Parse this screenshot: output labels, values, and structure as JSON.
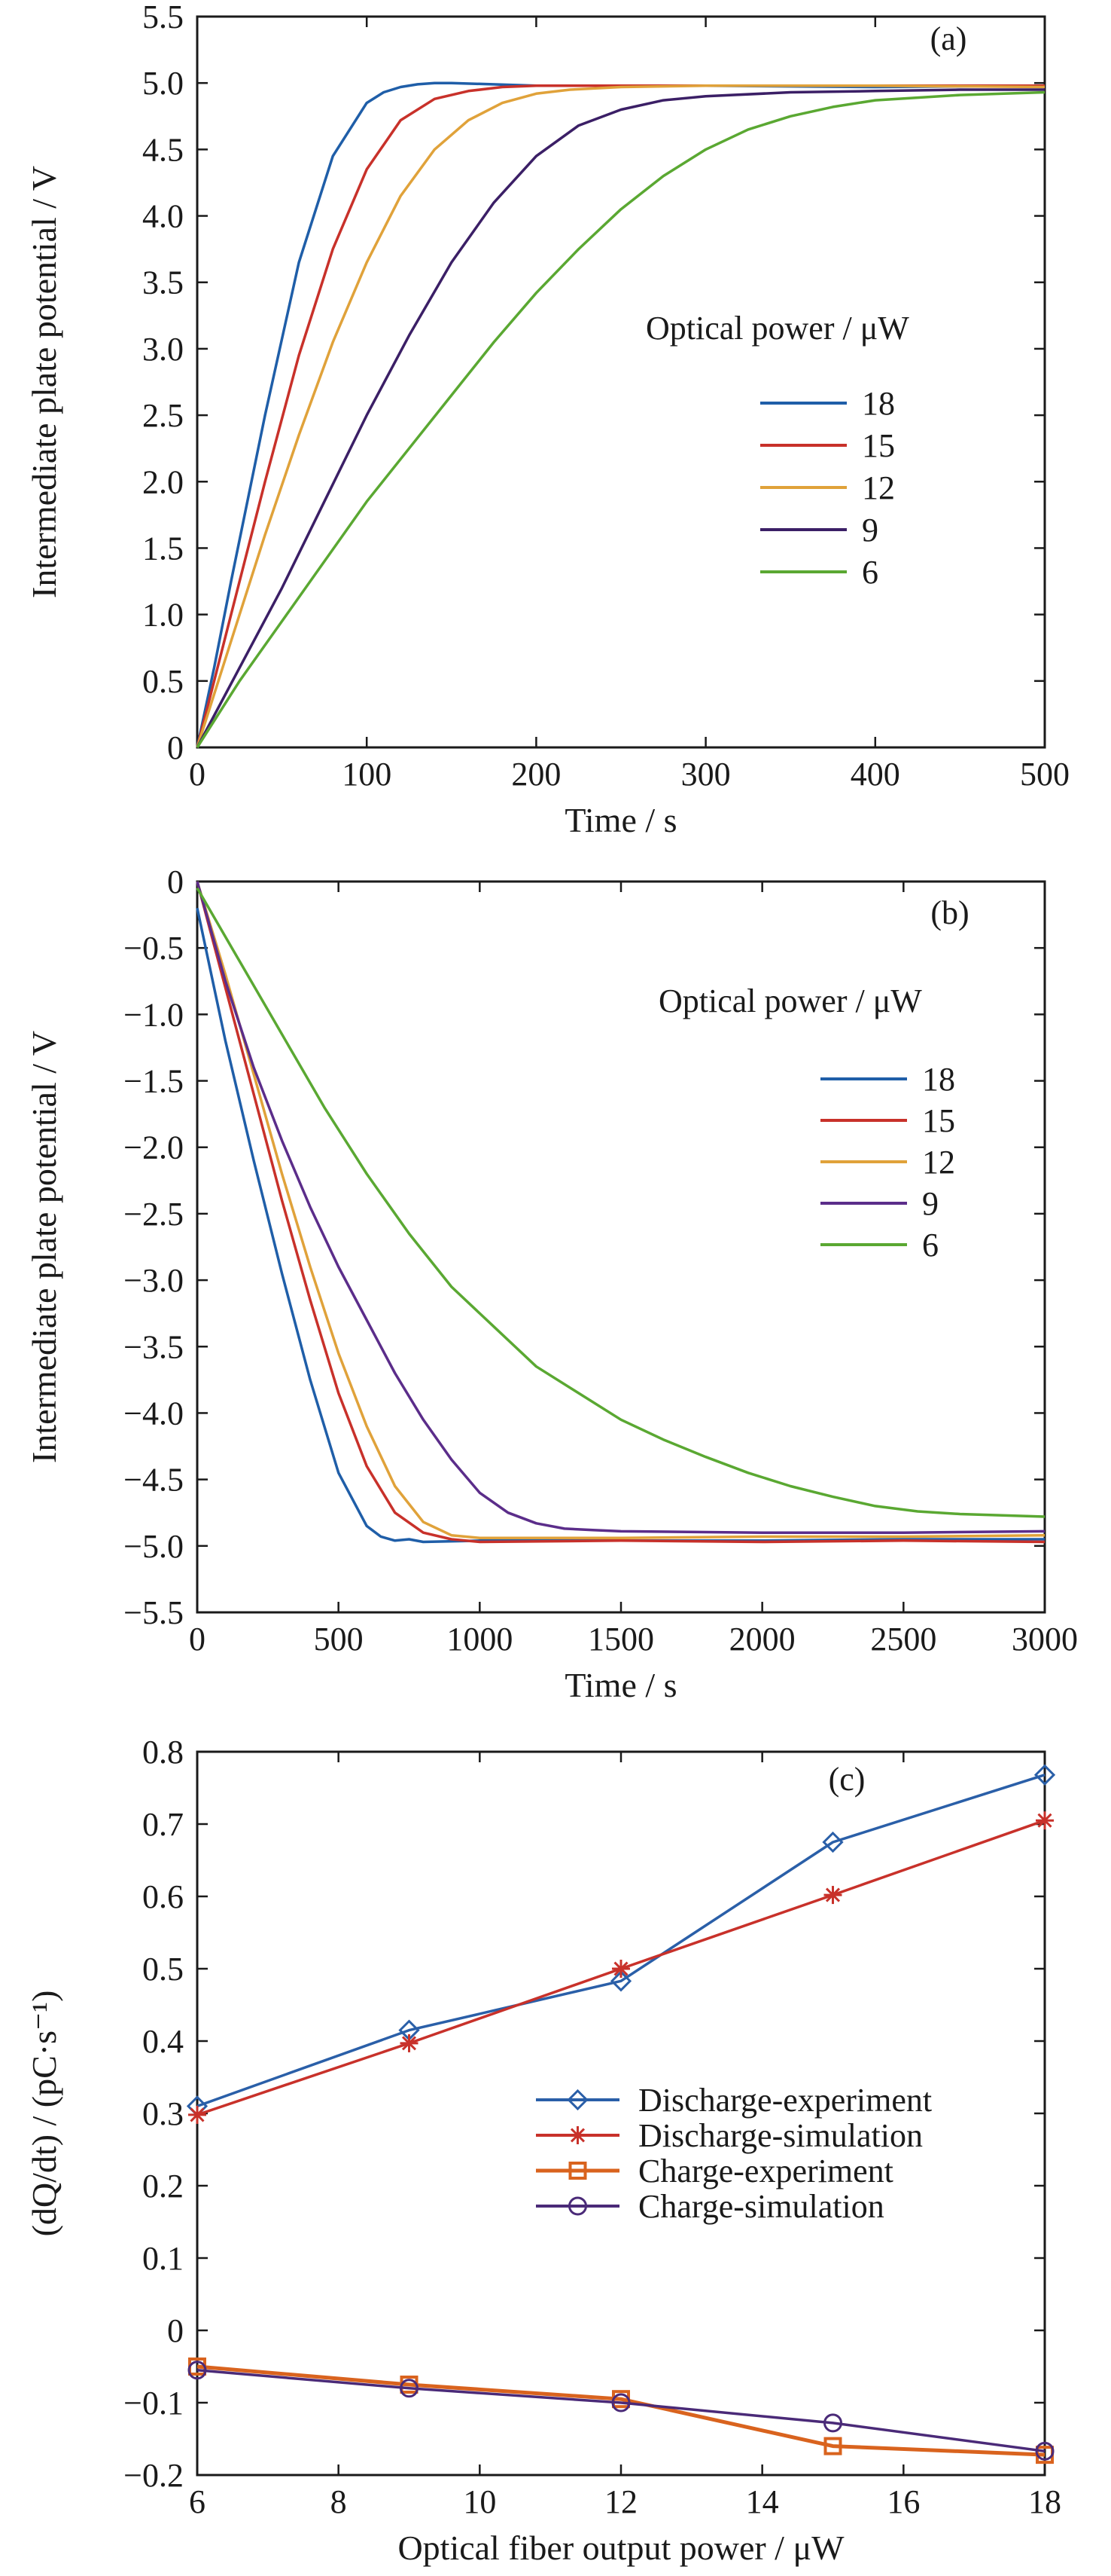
{
  "chart_data": [
    {
      "type": "line",
      "panel_label": "(a)",
      "xlabel": "Time / s",
      "ylabel": "Intermediate plate potential / V",
      "xlim": [
        0,
        500
      ],
      "ylim": [
        0,
        5.5
      ],
      "xticks": [
        0,
        100,
        200,
        300,
        400,
        500
      ],
      "yticks": [
        0,
        0.5,
        1.0,
        1.5,
        2.0,
        2.5,
        3.0,
        3.5,
        4.0,
        4.5,
        5.0,
        5.5
      ],
      "xtick_labels": [
        "0",
        "100",
        "200",
        "300",
        "400",
        "500"
      ],
      "ytick_labels": [
        "0",
        "0.5",
        "1.0",
        "1.5",
        "2.0",
        "2.5",
        "3.0",
        "3.5",
        "4.0",
        "4.5",
        "5.0",
        "5.5"
      ],
      "legend_title": "Optical power / μW",
      "legend_position": "center-right",
      "grid": false,
      "series": [
        {
          "name": "18",
          "color": "#1f5ea8",
          "x": [
            0,
            10,
            20,
            40,
            60,
            80,
            100,
            110,
            120,
            130,
            140,
            150,
            200,
            300,
            400,
            500
          ],
          "y": [
            0,
            0.6,
            1.25,
            2.5,
            3.65,
            4.45,
            4.85,
            4.93,
            4.97,
            4.99,
            5.0,
            5.0,
            4.98,
            4.98,
            4.97,
            4.98
          ]
        },
        {
          "name": "15",
          "color": "#c8312a",
          "x": [
            0,
            10,
            20,
            40,
            60,
            80,
            100,
            120,
            140,
            160,
            180,
            200,
            250,
            300,
            400,
            500
          ],
          "y": [
            0,
            0.5,
            1.0,
            2.0,
            2.95,
            3.75,
            4.35,
            4.72,
            4.88,
            4.94,
            4.97,
            4.98,
            4.98,
            4.98,
            4.98,
            4.98
          ]
        },
        {
          "name": "12",
          "color": "#e0a23a",
          "x": [
            0,
            20,
            40,
            60,
            80,
            100,
            120,
            140,
            160,
            180,
            200,
            220,
            250,
            300,
            400,
            500
          ],
          "y": [
            0,
            0.8,
            1.6,
            2.35,
            3.05,
            3.65,
            4.15,
            4.5,
            4.72,
            4.85,
            4.92,
            4.95,
            4.97,
            4.98,
            4.98,
            4.97
          ]
        },
        {
          "name": "9",
          "color": "#3b1f66",
          "x": [
            0,
            25,
            50,
            75,
            100,
            125,
            150,
            175,
            200,
            225,
            250,
            275,
            300,
            350,
            400,
            450,
            500
          ],
          "y": [
            0,
            0.6,
            1.2,
            1.85,
            2.5,
            3.1,
            3.65,
            4.1,
            4.45,
            4.68,
            4.8,
            4.87,
            4.9,
            4.93,
            4.94,
            4.95,
            4.95
          ]
        },
        {
          "name": "6",
          "color": "#5aa832",
          "x": [
            0,
            25,
            50,
            75,
            100,
            125,
            150,
            175,
            200,
            225,
            250,
            275,
            300,
            325,
            350,
            375,
            400,
            450,
            500
          ],
          "y": [
            0,
            0.5,
            0.95,
            1.4,
            1.85,
            2.25,
            2.65,
            3.05,
            3.42,
            3.75,
            4.05,
            4.3,
            4.5,
            4.65,
            4.75,
            4.82,
            4.87,
            4.91,
            4.93
          ]
        }
      ]
    },
    {
      "type": "line",
      "panel_label": "(b)",
      "xlabel": "Time / s",
      "ylabel": "Intermediate plate potential / V",
      "xlim": [
        0,
        3000
      ],
      "ylim": [
        -5.5,
        0
      ],
      "xticks": [
        0,
        500,
        1000,
        1500,
        2000,
        2500,
        3000
      ],
      "yticks": [
        0,
        -0.5,
        -1.0,
        -1.5,
        -2.0,
        -2.5,
        -3.0,
        -3.5,
        -4.0,
        -4.5,
        -5.0,
        -5.5
      ],
      "xtick_labels": [
        "0",
        "500",
        "1000",
        "1500",
        "2000",
        "2500",
        "3000"
      ],
      "ytick_labels": [
        "0",
        "−0.5",
        "−1.0",
        "−1.5",
        "−2.0",
        "−2.5",
        "−3.0",
        "−3.5",
        "−4.0",
        "−4.5",
        "−5.0",
        "−5.5"
      ],
      "legend_title": "Optical power / μW",
      "legend_position": "top-right",
      "grid": false,
      "series": [
        {
          "name": "18",
          "color": "#1f5ea8",
          "x": [
            0,
            100,
            200,
            300,
            400,
            500,
            600,
            650,
            700,
            750,
            800,
            1000,
            1500,
            2000,
            2500,
            3000
          ],
          "y": [
            -0.2,
            -1.2,
            -2.1,
            -2.95,
            -3.75,
            -4.45,
            -4.85,
            -4.93,
            -4.96,
            -4.95,
            -4.97,
            -4.96,
            -4.96,
            -4.96,
            -4.95,
            -4.95
          ]
        },
        {
          "name": "15",
          "color": "#c8312a",
          "x": [
            0,
            100,
            200,
            300,
            400,
            500,
            600,
            700,
            800,
            900,
            1000,
            1500,
            2000,
            2500,
            3000
          ],
          "y": [
            0,
            -0.8,
            -1.6,
            -2.4,
            -3.15,
            -3.85,
            -4.4,
            -4.75,
            -4.9,
            -4.95,
            -4.97,
            -4.96,
            -4.97,
            -4.96,
            -4.97
          ]
        },
        {
          "name": "12",
          "color": "#e0a23a",
          "x": [
            0,
            100,
            200,
            300,
            400,
            500,
            600,
            700,
            800,
            900,
            1000,
            1500,
            2000,
            2500,
            3000
          ],
          "y": [
            0,
            -0.7,
            -1.45,
            -2.2,
            -2.9,
            -3.55,
            -4.1,
            -4.55,
            -4.82,
            -4.92,
            -4.94,
            -4.94,
            -4.93,
            -4.93,
            -4.92
          ]
        },
        {
          "name": "9",
          "color": "#5b2d8a",
          "x": [
            0,
            100,
            200,
            300,
            400,
            500,
            600,
            700,
            800,
            900,
            1000,
            1100,
            1200,
            1300,
            1400,
            1500,
            2000,
            2500,
            3000
          ],
          "y": [
            0,
            -0.75,
            -1.4,
            -1.95,
            -2.45,
            -2.9,
            -3.3,
            -3.7,
            -4.05,
            -4.35,
            -4.6,
            -4.75,
            -4.83,
            -4.87,
            -4.88,
            -4.89,
            -4.9,
            -4.9,
            -4.89
          ]
        },
        {
          "name": "6",
          "color": "#5aa832",
          "x": [
            0,
            150,
            300,
            450,
            600,
            750,
            900,
            1050,
            1200,
            1350,
            1500,
            1650,
            1800,
            1950,
            2100,
            2250,
            2400,
            2550,
            2700,
            2850,
            3000
          ],
          "y": [
            -0.05,
            -0.6,
            -1.15,
            -1.7,
            -2.2,
            -2.65,
            -3.05,
            -3.35,
            -3.65,
            -3.85,
            -4.05,
            -4.2,
            -4.33,
            -4.45,
            -4.55,
            -4.63,
            -4.7,
            -4.74,
            -4.76,
            -4.77,
            -4.78
          ]
        }
      ]
    },
    {
      "type": "line",
      "panel_label": "(c)",
      "xlabel": "Optical fiber output power / μW",
      "ylabel": "(dQ/dt) / (pC·s⁻¹)",
      "xlim": [
        6,
        18
      ],
      "ylim": [
        -0.2,
        0.8
      ],
      "xticks": [
        6,
        8,
        10,
        12,
        14,
        16,
        18
      ],
      "yticks": [
        0.8,
        0.7,
        0.6,
        0.5,
        0.4,
        0.3,
        0.2,
        0.1,
        0,
        -0.1,
        -0.2
      ],
      "xtick_labels": [
        "6",
        "8",
        "10",
        "12",
        "14",
        "16",
        "18"
      ],
      "ytick_labels": [
        "0.8",
        "0.7",
        "0.6",
        "0.5",
        "0.4",
        "0.3",
        "0.2",
        "0.1",
        "0",
        "−0.1",
        "−0.2"
      ],
      "legend_position": "center-right",
      "grid": false,
      "series": [
        {
          "name": "Discharge-experiment",
          "color": "#2a5fa8",
          "marker": "diamond",
          "x": [
            6,
            9,
            12,
            15,
            18
          ],
          "y": [
            0.31,
            0.415,
            0.483,
            0.675,
            0.768
          ]
        },
        {
          "name": "Discharge-simulation",
          "color": "#c8312a",
          "marker": "star",
          "x": [
            6,
            9,
            12,
            15,
            18
          ],
          "y": [
            0.298,
            0.397,
            0.5,
            0.602,
            0.705
          ]
        },
        {
          "name": "Charge-experiment",
          "color": "#d9631e",
          "marker": "square",
          "x": [
            6,
            9,
            12,
            15,
            18
          ],
          "y": [
            -0.05,
            -0.075,
            -0.095,
            -0.16,
            -0.172
          ]
        },
        {
          "name": "Charge-simulation",
          "color": "#4a2a78",
          "marker": "circle",
          "x": [
            6,
            9,
            12,
            15,
            18
          ],
          "y": [
            -0.055,
            -0.08,
            -0.1,
            -0.128,
            -0.167
          ]
        }
      ]
    }
  ]
}
